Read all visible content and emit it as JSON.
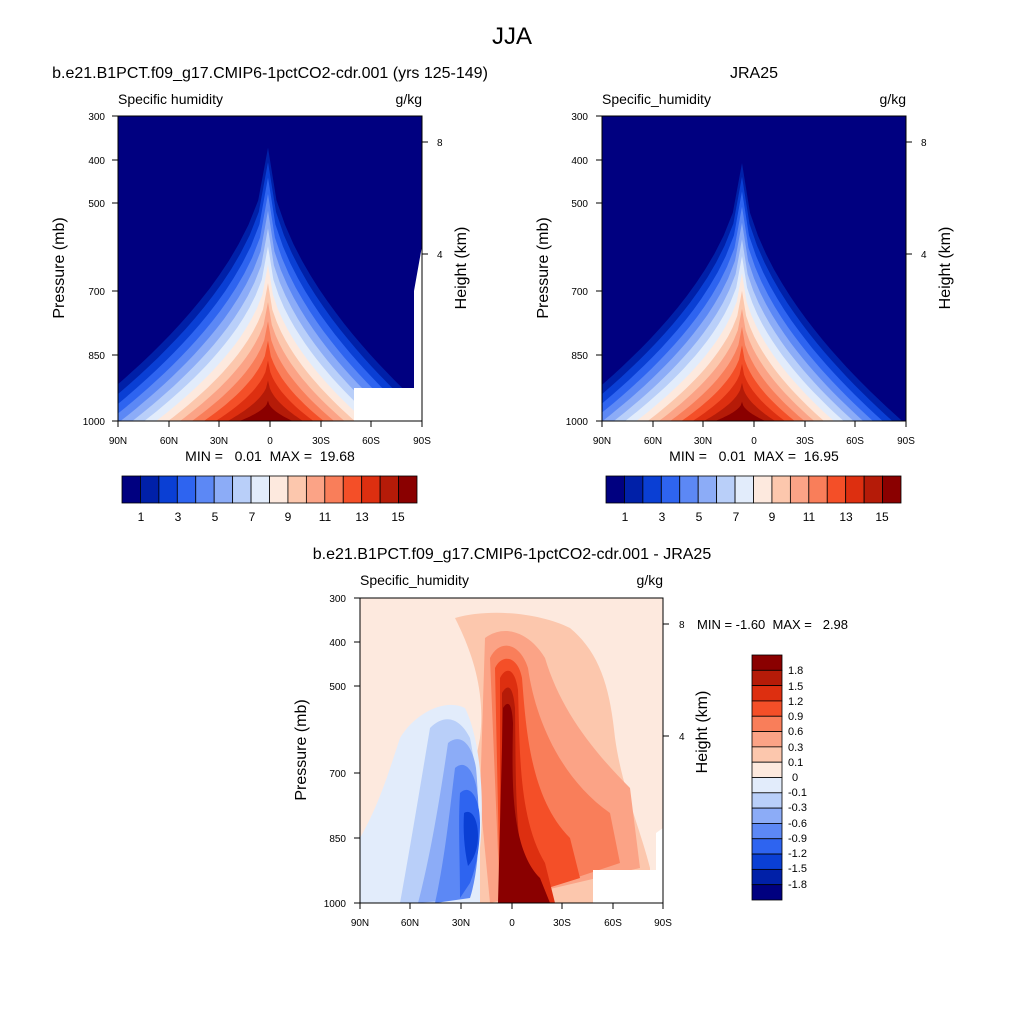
{
  "figure": {
    "title": "JJA"
  },
  "colors": {
    "full_palette": [
      "#000080",
      "#0020a8",
      "#0a3fd4",
      "#2e64f0",
      "#5c88f5",
      "#8cacf7",
      "#b9cff9",
      "#e2ecfb",
      "#fde9de",
      "#fcc7ad",
      "#fba386",
      "#f97e5a",
      "#f44f28",
      "#dd2f10",
      "#b51b08",
      "#8a0000"
    ],
    "diff_palette": [
      "#000080",
      "#0020a8",
      "#0a3fd4",
      "#2e64f0",
      "#5c88f5",
      "#8cacf7",
      "#b9cff9",
      "#e2ecfb",
      "#fde9de",
      "#fcc7ad",
      "#fba386",
      "#f97e5a",
      "#f44f28",
      "#dd2f10",
      "#b51b08",
      "#8a0000"
    ]
  },
  "chart_data": [
    {
      "type": "heatmap",
      "title": "b.e21.B1PCT.f09_g17.CMIP6-1pctCO2-cdr.001 (yrs 125-149)",
      "variable_label": "Specific humidity",
      "units": "g/kg",
      "ylabel": "Pressure (mb)",
      "y2label": "Height (km)",
      "x_ticks": [
        "90N",
        "60N",
        "30N",
        "0",
        "30S",
        "60S",
        "90S"
      ],
      "y_ticks": [
        "300",
        "400",
        "500",
        "700",
        "850",
        "1000"
      ],
      "y2_ticks": [
        "8",
        "4"
      ],
      "stats": "MIN =   0.01  MAX =  19.68",
      "colorbar_labels": [
        "1",
        "3",
        "5",
        "7",
        "9",
        "11",
        "13",
        "15"
      ],
      "x": [
        90,
        60,
        30,
        0,
        -30,
        -60,
        -90
      ],
      "ylim": [
        1000,
        300
      ],
      "peak": {
        "lat": 5,
        "pressure": 1000,
        "value": 19.68
      },
      "min": 0.01,
      "max": 19.68
    },
    {
      "type": "heatmap",
      "title": "JRA25",
      "variable_label": "Specific_humidity",
      "units": "g/kg",
      "ylabel": "Pressure (mb)",
      "y2label": "Height (km)",
      "x_ticks": [
        "90N",
        "60N",
        "30N",
        "0",
        "30S",
        "60S",
        "90S"
      ],
      "y_ticks": [
        "300",
        "400",
        "500",
        "700",
        "850",
        "1000"
      ],
      "y2_ticks": [
        "8",
        "4"
      ],
      "stats": "MIN =   0.01  MAX =  16.95",
      "colorbar_labels": [
        "1",
        "3",
        "5",
        "7",
        "9",
        "11",
        "13",
        "15"
      ],
      "x": [
        90,
        60,
        30,
        0,
        -30,
        -60,
        -90
      ],
      "ylim": [
        1000,
        300
      ],
      "peak": {
        "lat": 12,
        "pressure": 1000,
        "value": 16.95
      },
      "min": 0.01,
      "max": 16.95
    },
    {
      "type": "heatmap",
      "title": "b.e21.B1PCT.f09_g17.CMIP6-1pctCO2-cdr.001 - JRA25",
      "variable_label": "Specific_humidity",
      "units": "g/kg",
      "ylabel": "Pressure (mb)",
      "y2label": "Height (km)",
      "x_ticks": [
        "90N",
        "60N",
        "30N",
        "0",
        "30S",
        "60S",
        "90S"
      ],
      "y_ticks": [
        "300",
        "400",
        "500",
        "700",
        "850",
        "1000"
      ],
      "y2_ticks": [
        "8",
        "4"
      ],
      "stats": "MIN = -1.60  MAX =   2.98",
      "colorbar_labels": [
        "1.8",
        "1.5",
        "1.2",
        "0.9",
        "0.6",
        "0.3",
        "0.1",
        "0",
        "-0.1",
        "-0.3",
        "-0.6",
        "-0.9",
        "-1.2",
        "-1.5",
        "-1.8"
      ],
      "x": [
        90,
        60,
        30,
        0,
        -30,
        -60,
        -90
      ],
      "ylim": [
        1000,
        300
      ],
      "min": -1.6,
      "max": 2.98
    }
  ]
}
